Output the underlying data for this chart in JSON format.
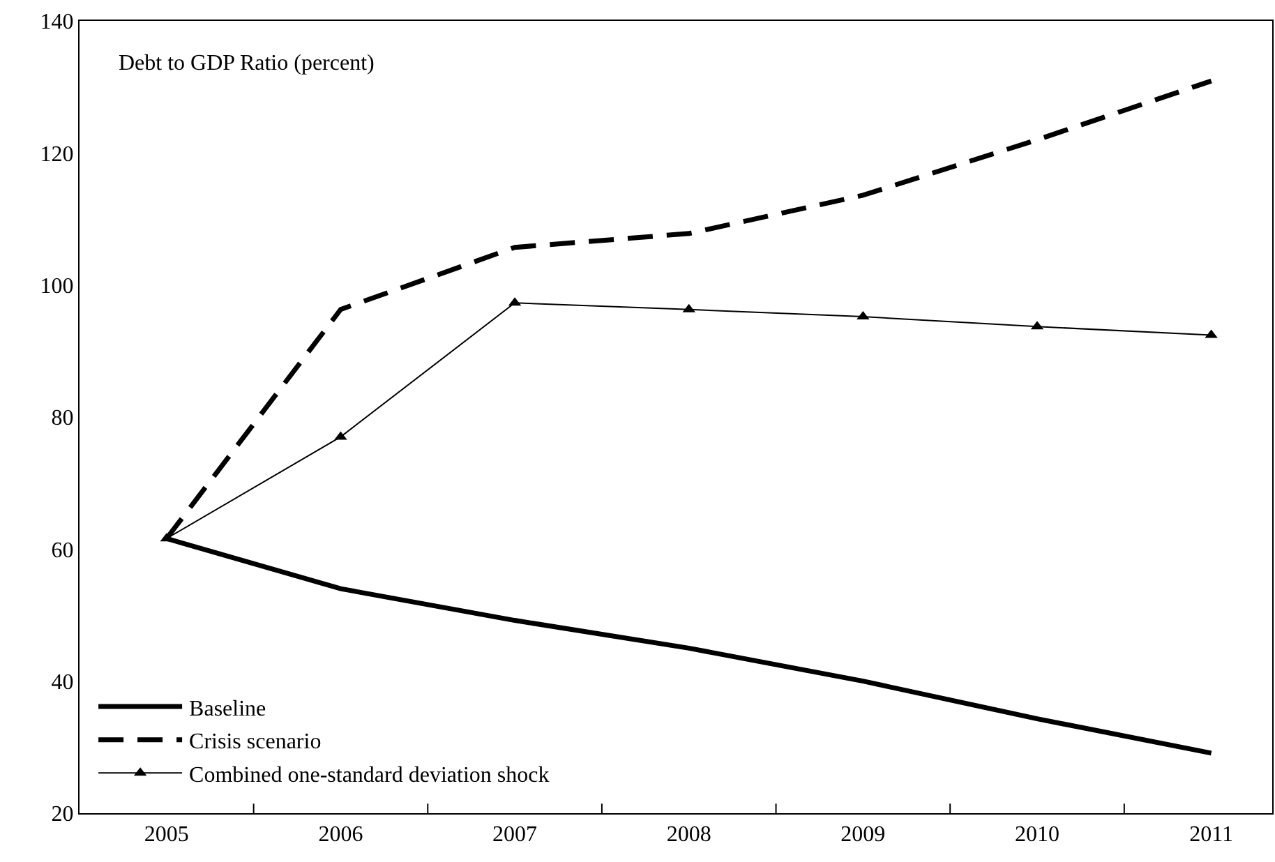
{
  "chart_data": {
    "type": "line",
    "title": "Debt to GDP Ratio (percent)",
    "categories": [
      "2005",
      "2006",
      "2007",
      "2008",
      "2009",
      "2010",
      "2011"
    ],
    "ylim": [
      20,
      140
    ],
    "yticks": [
      20,
      40,
      60,
      80,
      100,
      120,
      140
    ],
    "legend": "bottom left",
    "series": [
      {
        "name": "Baseline",
        "color": "#000000",
        "line_style": "solid",
        "marker": "none",
        "values": [
          61.6,
          54.0,
          49.2,
          45.0,
          40.0,
          34.3,
          29.1
        ]
      },
      {
        "name": "Crisis scenario",
        "color": "#000000",
        "line_style": "dashed",
        "marker": "none",
        "values": [
          61.6,
          96.3,
          105.7,
          107.8,
          113.6,
          122.0,
          130.9
        ]
      },
      {
        "name": "Combined one-standard deviation shock",
        "color": "#000000",
        "line_style": "solid",
        "marker": "triangle",
        "values": [
          61.6,
          77.0,
          97.3,
          96.3,
          95.2,
          93.7,
          92.4
        ]
      }
    ]
  }
}
